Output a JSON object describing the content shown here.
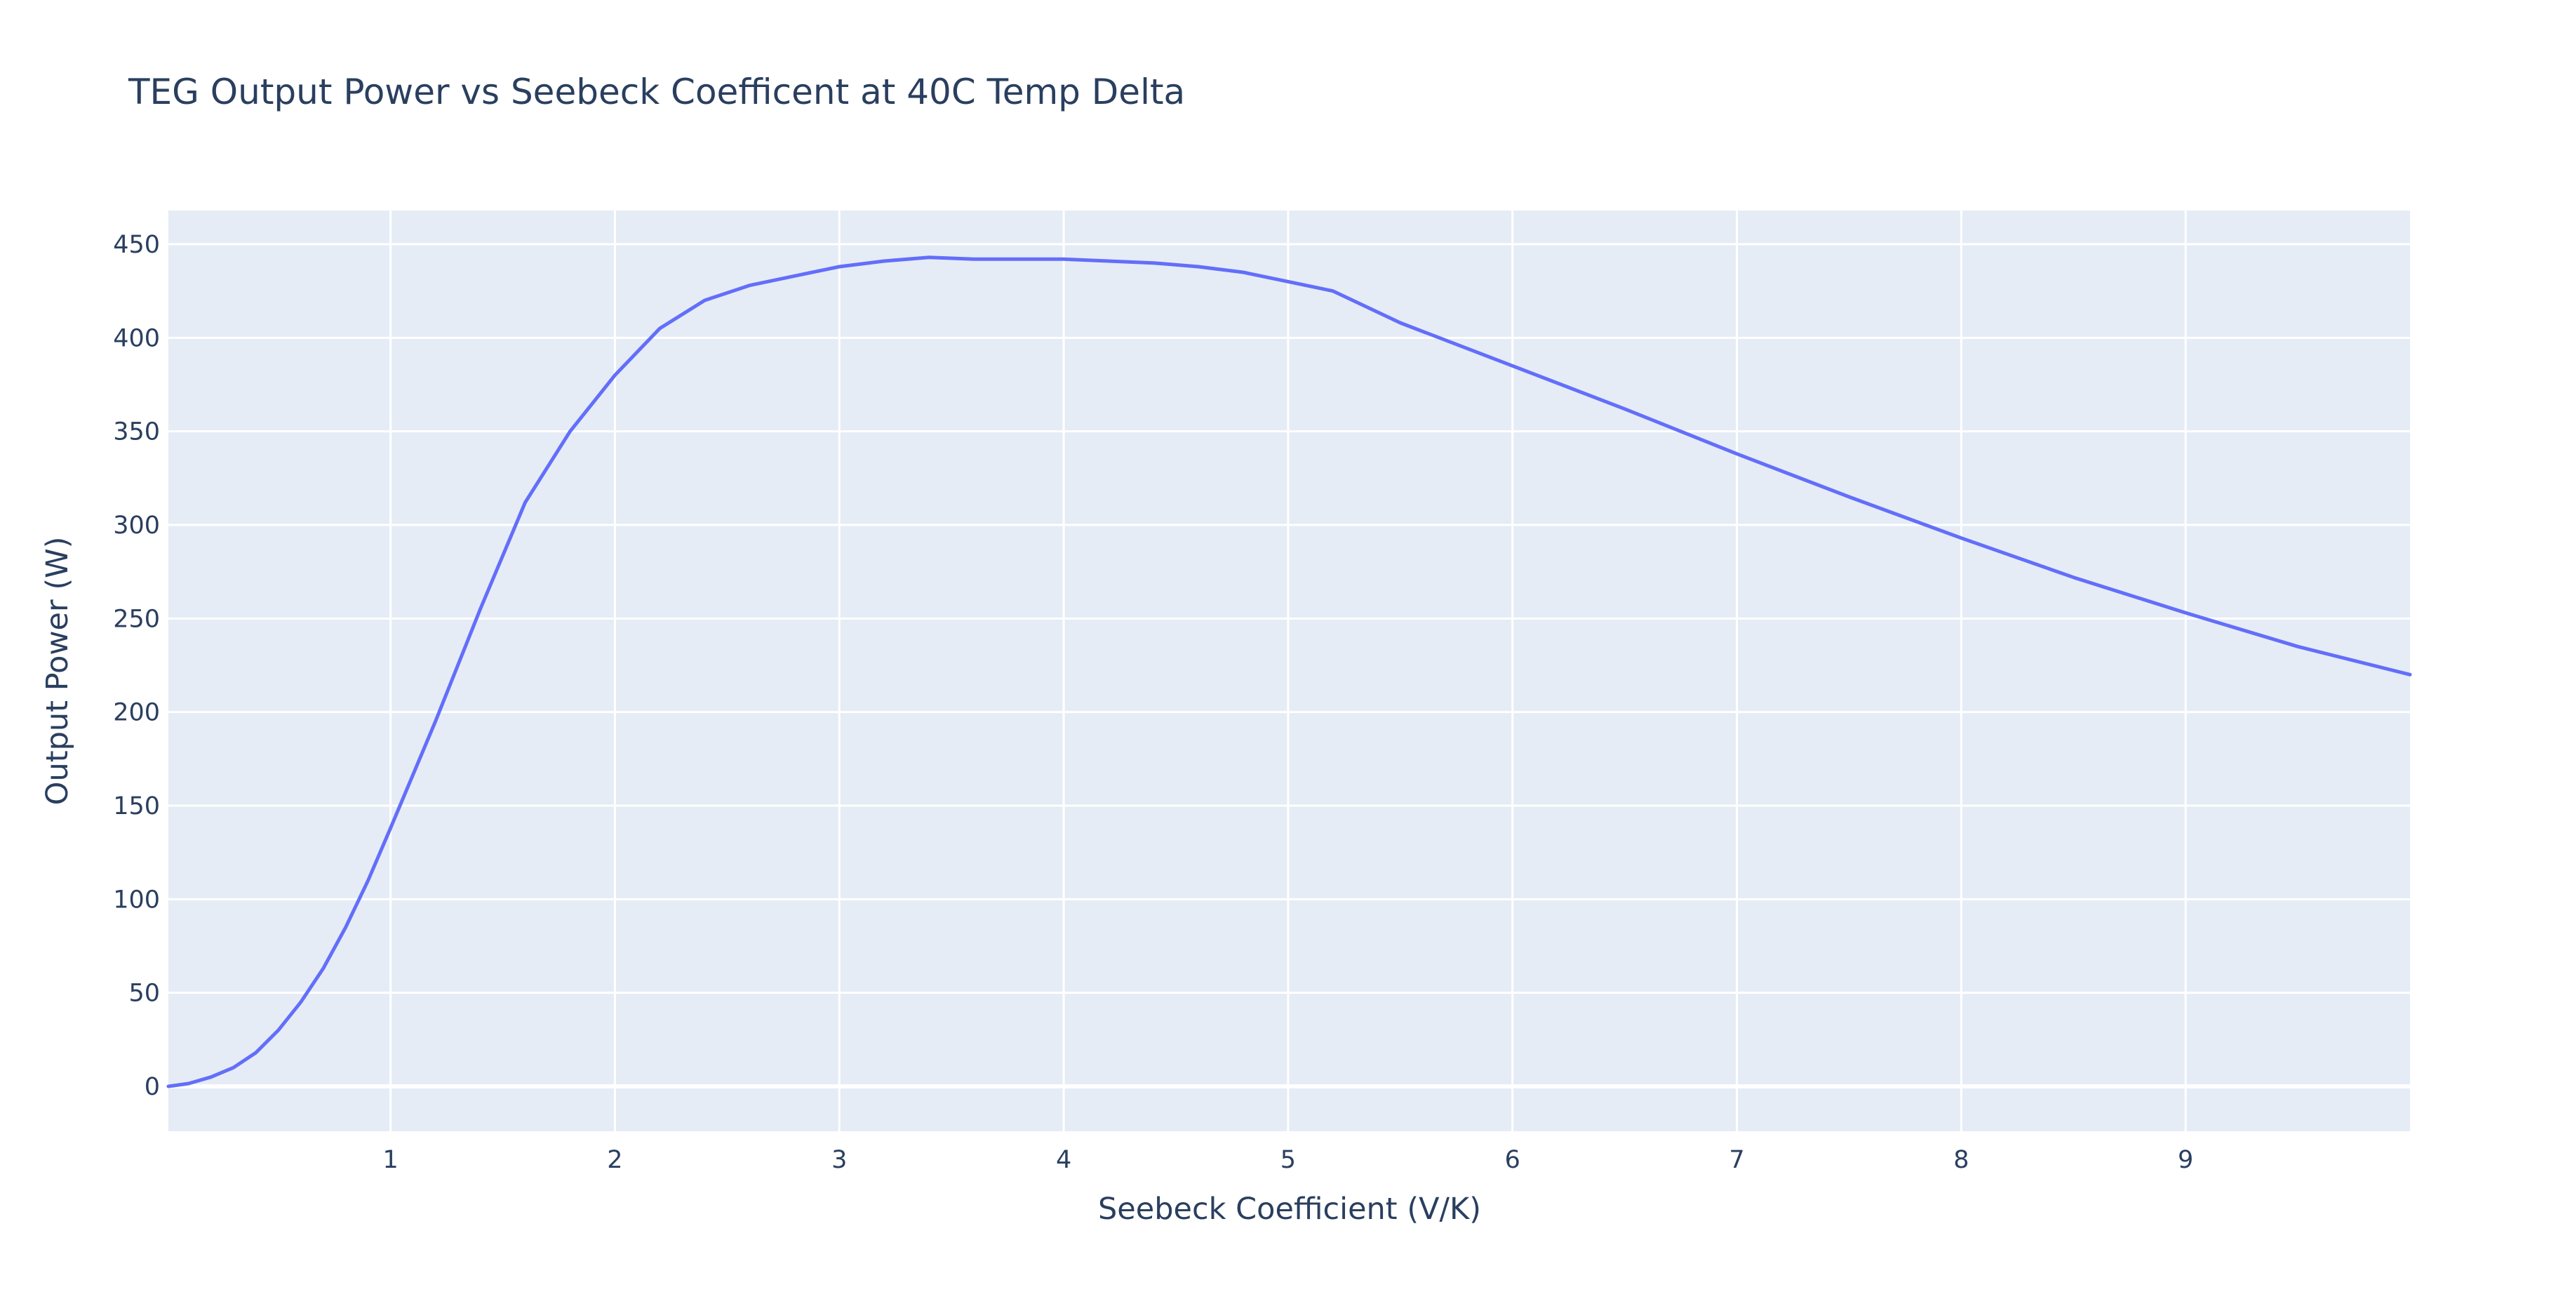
{
  "chart_data": {
    "type": "line",
    "title": "TEG Output Power vs Seebeck Coefficent at 40C Temp Delta",
    "xlabel": "Seebeck Coefficient (V/K)",
    "ylabel": "Output Power (W)",
    "xlim": [
      0.01,
      10
    ],
    "ylim": [
      -24,
      468
    ],
    "x_ticks": [
      1,
      2,
      3,
      4,
      5,
      6,
      7,
      8,
      9
    ],
    "y_ticks": [
      0,
      50,
      100,
      150,
      200,
      250,
      300,
      350,
      400,
      450
    ],
    "grid": true,
    "legend": "none",
    "colors": {
      "plot_background": "#E5ECF6",
      "grid": "#FFFFFF",
      "line": "#636EFA",
      "text": "#2A3F5F"
    },
    "series": [
      {
        "x": [
          0.01,
          0.1,
          0.2,
          0.3,
          0.4,
          0.5,
          0.6,
          0.7,
          0.8,
          0.9,
          1.0,
          1.2,
          1.4,
          1.6,
          1.8,
          1.9,
          2.0,
          2.2,
          2.4,
          2.6,
          2.8,
          3.0,
          3.2,
          3.4,
          3.6,
          3.8,
          4.0,
          4.2,
          4.4,
          4.6,
          4.8,
          5.0,
          5.2,
          5.5,
          6.0,
          6.5,
          7.0,
          7.5,
          8.0,
          8.5,
          9.0,
          9.5,
          10.0
        ],
        "y": [
          0,
          1.5,
          5,
          10,
          18,
          30,
          45,
          63,
          85,
          110,
          138,
          195,
          255,
          312,
          350,
          365,
          380,
          405,
          420,
          428,
          433,
          438,
          441,
          443,
          442,
          442,
          442,
          441,
          440,
          438,
          435,
          430,
          425,
          408,
          385,
          362,
          338,
          315,
          293,
          272,
          253,
          235,
          220
        ]
      }
    ]
  }
}
